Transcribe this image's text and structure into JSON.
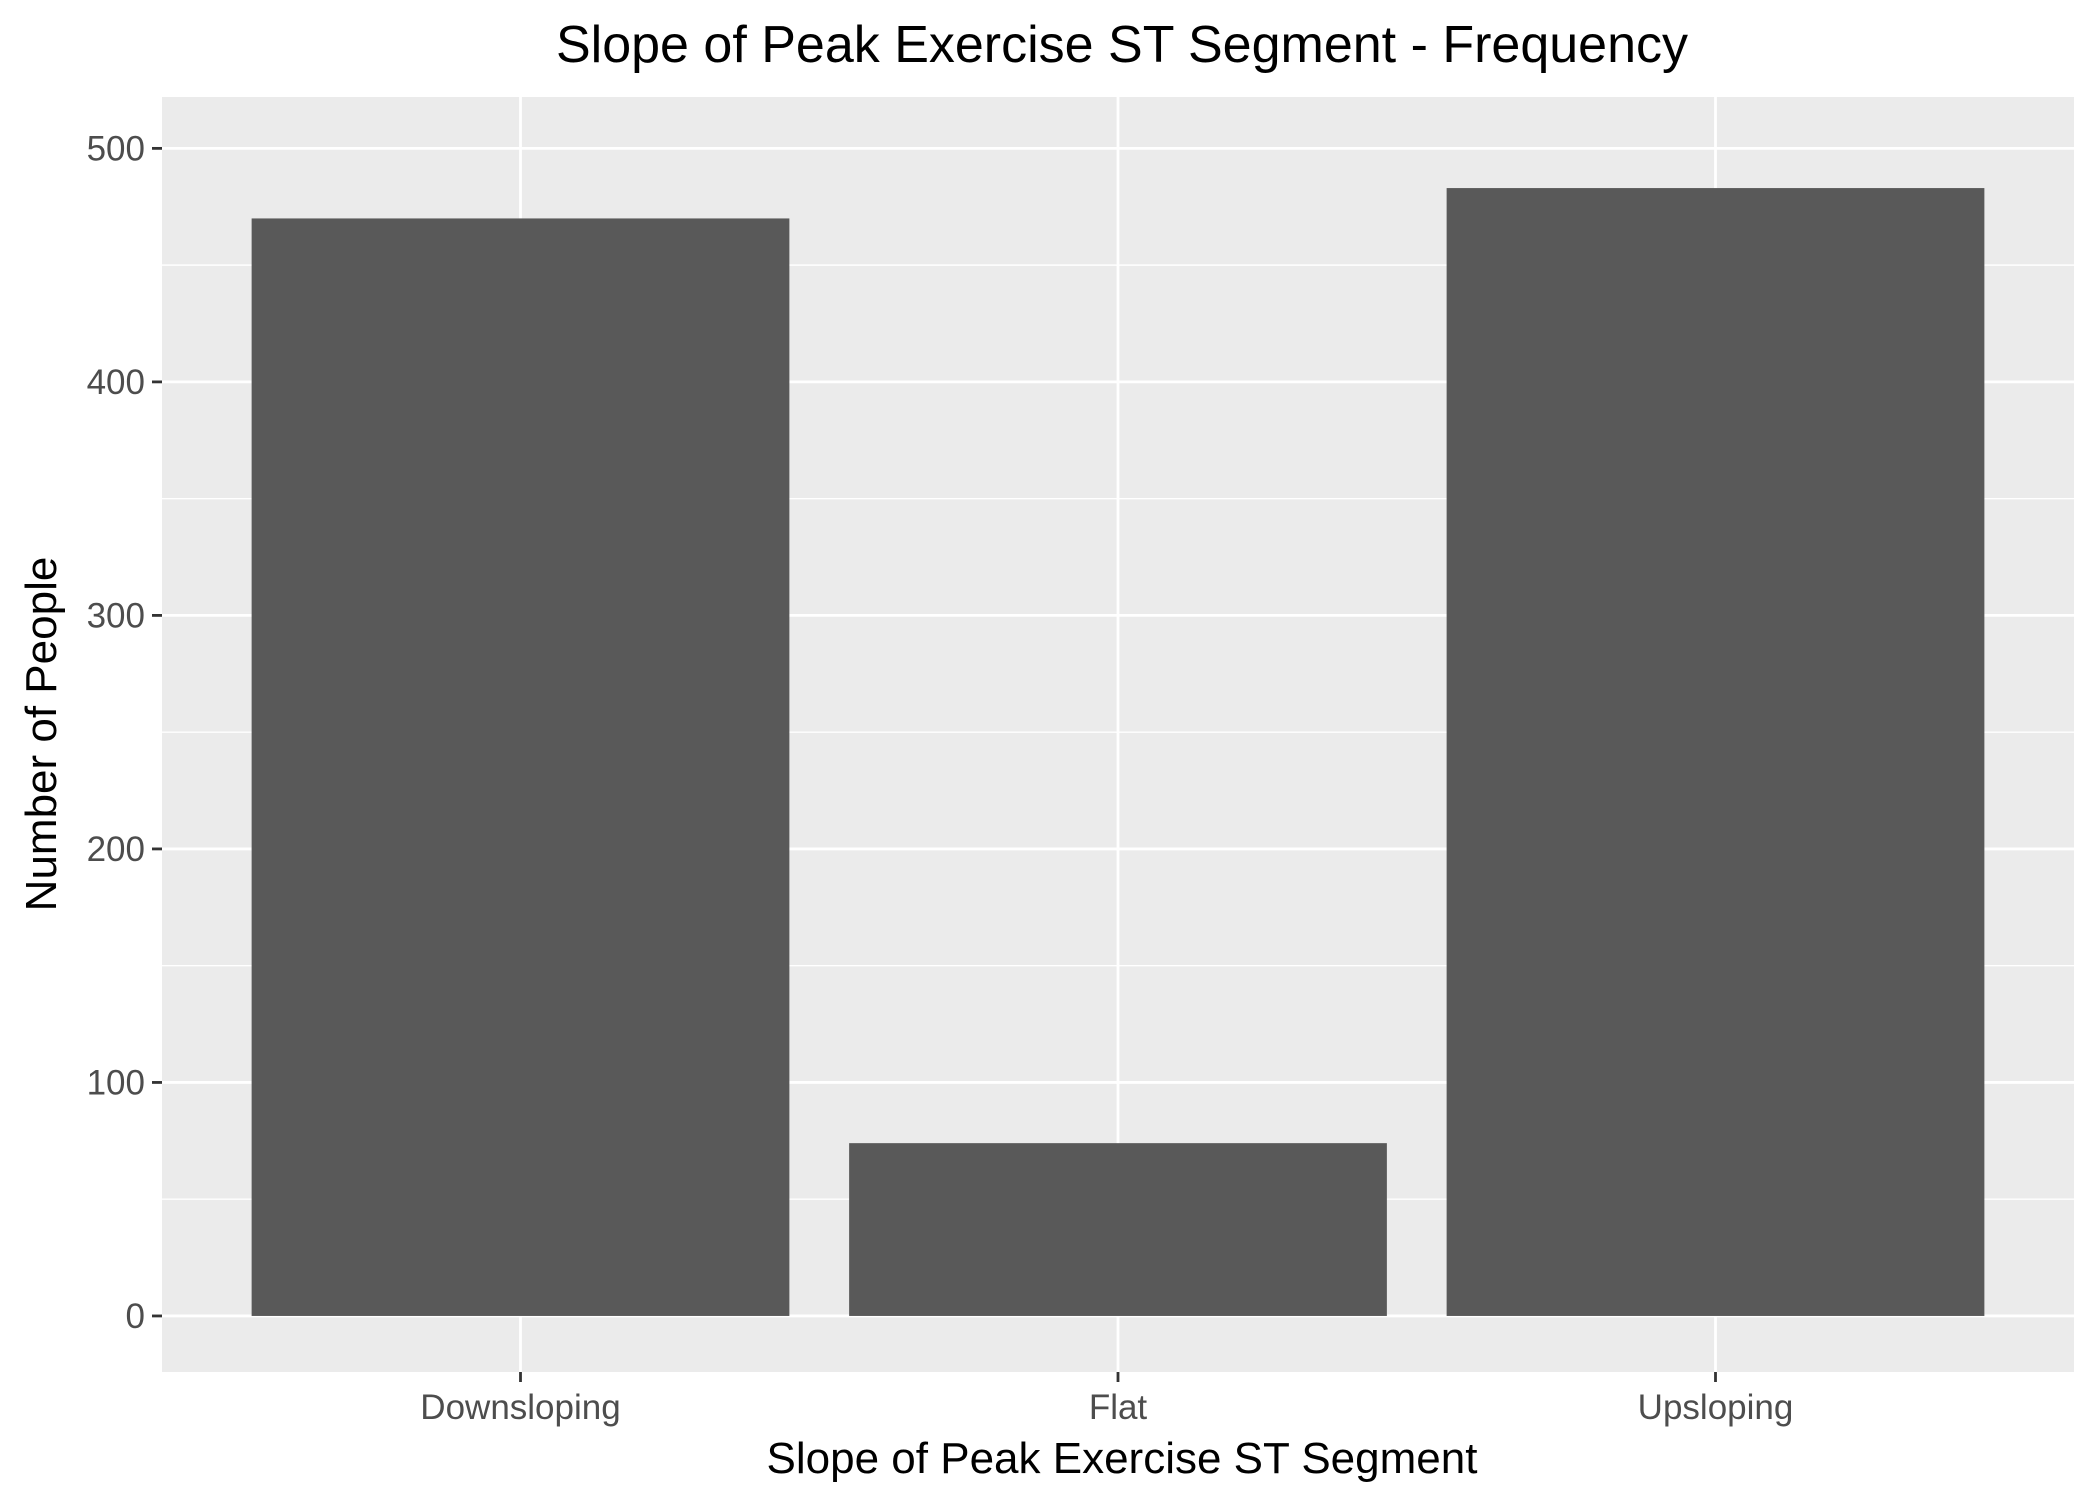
{
  "chart_data": {
    "type": "bar",
    "title": "Slope of Peak Exercise ST Segment - Frequency",
    "xlabel": "Slope of Peak Exercise ST Segment",
    "ylabel": "Number of People",
    "categories": [
      "Downsloping",
      "Flat",
      "Upsloping"
    ],
    "values": [
      470,
      74,
      483
    ],
    "ylim": [
      -24,
      522
    ],
    "yticks": [
      0,
      100,
      200,
      300,
      400,
      500
    ],
    "ytick_labels": [
      "0",
      "100",
      "200",
      "300",
      "400",
      "500"
    ],
    "grid": true,
    "legend": "none",
    "colors": {
      "bar": "#595959",
      "panel_background": "#ebebeb",
      "grid": "#ffffff",
      "tick": "#333333",
      "tick_label": "#4d4d4d",
      "text": "#000000"
    }
  }
}
